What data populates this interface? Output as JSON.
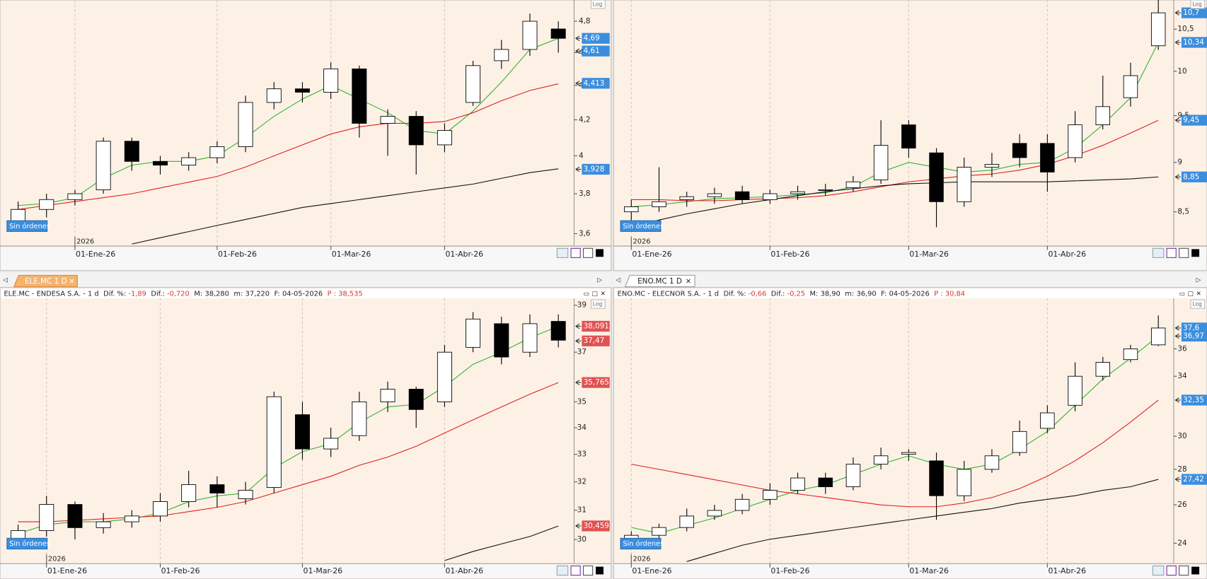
{
  "tabs": [
    "ELE.MC 1 D",
    "ENO.MC 1 D"
  ],
  "chart_data": [
    {
      "type": "candlestick",
      "log": true,
      "scale_button": "Log",
      "orders_label": "Sin órdenes",
      "year_label": "2026",
      "label_color": "#3b8ede",
      "up_color": "#ffffff",
      "down_color": "#000000",
      "ylim": [
        3.54,
        4.94
      ],
      "yticks": [
        {
          "value": 3.6,
          "label": "3,6"
        },
        {
          "value": 3.8,
          "label": "3,8"
        },
        4,
        {
          "value": 4.2,
          "label": "4,2"
        },
        {
          "value": 4.4,
          "label": "4,4"
        },
        {
          "value": 4.6,
          "label": "4,6"
        },
        {
          "value": 4.8,
          "label": "4,8"
        }
      ],
      "price_labels": [
        {
          "value": 4.69,
          "label": "4,69"
        },
        {
          "value": 4.61,
          "label": "4,61"
        },
        {
          "value": 4.413,
          "label": "4,413"
        },
        {
          "value": 3.928,
          "label": "3,928"
        }
      ],
      "categories": [
        null,
        null,
        "01-Ene-26",
        null,
        null,
        null,
        null,
        "01-Feb-26",
        null,
        null,
        null,
        "01-Mar-26",
        null,
        null,
        null,
        "01-Abr-26",
        null,
        null,
        null,
        null
      ],
      "ohlc": {
        "open": [
          3.65,
          3.72,
          3.77,
          3.82,
          4.08,
          3.97,
          3.95,
          3.99,
          4.05,
          4.3,
          4.38,
          4.36,
          4.5,
          4.18,
          4.22,
          4.06,
          4.3,
          4.55,
          4.62,
          4.75
        ],
        "high": [
          3.76,
          3.8,
          3.82,
          4.1,
          4.1,
          4.0,
          4.02,
          4.08,
          4.34,
          4.42,
          4.42,
          4.54,
          4.52,
          4.26,
          4.25,
          4.18,
          4.55,
          4.68,
          4.85,
          4.8
        ],
        "low": [
          3.62,
          3.68,
          3.74,
          3.8,
          3.92,
          3.9,
          3.92,
          3.96,
          4.02,
          4.26,
          4.3,
          4.32,
          4.1,
          4.0,
          3.9,
          4.02,
          4.28,
          4.5,
          4.58,
          4.6
        ],
        "close": [
          3.72,
          3.77,
          3.8,
          4.08,
          3.97,
          3.95,
          3.99,
          4.05,
          4.3,
          4.38,
          4.36,
          4.5,
          4.18,
          4.22,
          4.06,
          4.14,
          4.52,
          4.62,
          4.8,
          4.69
        ]
      },
      "lines": [
        {
          "color": "#2fb52f",
          "values": [
            3.74,
            3.75,
            3.78,
            3.88,
            3.95,
            3.97,
            3.97,
            4.0,
            4.1,
            4.22,
            4.32,
            4.4,
            4.32,
            4.24,
            4.14,
            4.12,
            4.25,
            4.42,
            4.62,
            4.69
          ]
        },
        {
          "color": "#e02020",
          "values": [
            3.72,
            3.74,
            3.76,
            3.78,
            3.8,
            3.83,
            3.86,
            3.89,
            3.94,
            4.0,
            4.06,
            4.12,
            4.16,
            4.18,
            4.18,
            4.19,
            4.24,
            4.31,
            4.37,
            4.41
          ]
        },
        {
          "color": "#111111",
          "values": [
            null,
            null,
            null,
            null,
            3.55,
            3.58,
            3.61,
            3.64,
            3.67,
            3.7,
            3.73,
            3.75,
            3.77,
            3.79,
            3.81,
            3.83,
            3.85,
            3.88,
            3.91,
            3.93
          ]
        }
      ]
    },
    {
      "type": "candlestick",
      "log": true,
      "scale_button": "Log",
      "orders_label": "Sin órdenes",
      "year_label": "2026",
      "label_color": "#3b8ede",
      "up_color": "#ffffff",
      "down_color": "#000000",
      "ylim": [
        8.17,
        10.86
      ],
      "yticks": [
        {
          "value": 8.5,
          "label": "8,5"
        },
        9,
        {
          "value": 9.5,
          "label": "9,5"
        },
        10,
        {
          "value": 10.5,
          "label": "10,5"
        }
      ],
      "price_labels": [
        {
          "value": 10.7,
          "label": "10,7"
        },
        {
          "value": 10.34,
          "label": "10,34"
        },
        {
          "value": 9.45,
          "label": "9,45"
        },
        {
          "value": 8.85,
          "label": "8,85"
        }
      ],
      "categories": [
        "01-Ene-26",
        null,
        null,
        null,
        null,
        "01-Feb-26",
        null,
        null,
        null,
        null,
        "01-Mar-26",
        null,
        null,
        null,
        null,
        "01-Abr-26",
        null,
        null,
        null,
        null
      ],
      "ohlc": {
        "open": [
          8.5,
          8.55,
          8.62,
          8.65,
          8.7,
          8.62,
          8.68,
          8.72,
          8.74,
          8.82,
          9.4,
          9.1,
          8.6,
          8.95,
          9.2,
          9.2,
          9.05,
          9.4,
          9.7,
          10.3
        ],
        "high": [
          8.62,
          8.95,
          8.7,
          8.74,
          8.76,
          8.72,
          8.76,
          8.78,
          8.86,
          9.45,
          9.45,
          9.15,
          9.05,
          9.1,
          9.3,
          9.3,
          9.55,
          9.95,
          10.1,
          10.86
        ],
        "low": [
          8.35,
          8.5,
          8.55,
          8.58,
          8.58,
          8.58,
          8.62,
          8.66,
          8.7,
          8.78,
          9.05,
          8.35,
          8.55,
          8.85,
          8.95,
          8.7,
          9.0,
          9.35,
          9.6,
          10.25
        ],
        "close": [
          8.55,
          8.6,
          8.65,
          8.68,
          8.62,
          8.68,
          8.7,
          8.72,
          8.8,
          9.18,
          9.15,
          8.6,
          8.95,
          8.98,
          9.05,
          8.9,
          9.4,
          9.6,
          9.95,
          10.7
        ]
      },
      "lines": [
        {
          "color": "#2fb52f",
          "values": [
            8.55,
            8.57,
            8.6,
            8.63,
            8.64,
            8.65,
            8.67,
            8.69,
            8.75,
            8.9,
            9.0,
            8.95,
            8.9,
            8.92,
            8.98,
            9.0,
            9.15,
            9.4,
            9.7,
            10.34
          ]
        },
        {
          "color": "#e02020",
          "values": [
            8.62,
            8.62,
            8.61,
            8.61,
            8.62,
            8.63,
            8.64,
            8.66,
            8.7,
            8.75,
            8.8,
            8.83,
            8.86,
            8.88,
            8.92,
            8.98,
            9.07,
            9.18,
            9.31,
            9.45
          ]
        },
        {
          "color": "#111111",
          "values": [
            8.35,
            8.42,
            8.48,
            8.53,
            8.58,
            8.62,
            8.66,
            8.7,
            8.73,
            8.76,
            8.78,
            8.79,
            8.8,
            8.8,
            8.8,
            8.8,
            8.81,
            8.82,
            8.83,
            8.85
          ]
        }
      ]
    },
    {
      "type": "candlestick",
      "log": true,
      "scale_button": "Log",
      "orders_label": "Sin órdenes",
      "year_label": "2026",
      "label_color": "#e05252",
      "up_color": "#ffffff",
      "down_color": "#000000",
      "header": {
        "symbol": "ELE.MC - ENDESA S.A. - 1 d",
        "fields": [
          {
            "label": "Dif. %:",
            "value": "-1,89",
            "color": "#d9342b"
          },
          {
            "label": "Dif.:",
            "value": "-0,720",
            "color": "#d9342b"
          },
          {
            "label": "M:",
            "value": "38,280"
          },
          {
            "label": "m:",
            "value": "37,220"
          },
          {
            "label": "F:",
            "value": "04-05-2026"
          },
          {
            "label": "P :",
            "value": "38,535",
            "color": "#d9342b",
            "label_color": "#d9342b"
          }
        ]
      },
      "ylim": [
        29.2,
        39.3
      ],
      "yticks": [
        30,
        31,
        32,
        33,
        34,
        35,
        37,
        39
      ],
      "price_labels": [
        {
          "value": 38.091,
          "label": "38,091"
        },
        {
          "value": 37.47,
          "label": "37,47"
        },
        {
          "value": 35.765,
          "label": "35,765"
        },
        {
          "value": 30.459,
          "label": "30,459"
        }
      ],
      "categories": [
        null,
        "01-Ene-26",
        null,
        null,
        null,
        "01-Feb-26",
        null,
        null,
        null,
        null,
        "01-Mar-26",
        null,
        null,
        null,
        null,
        "01-Abr-26",
        null,
        null,
        null,
        null
      ],
      "ohlc": {
        "open": [
          30.0,
          30.3,
          31.2,
          30.4,
          30.6,
          30.8,
          31.3,
          31.9,
          31.4,
          31.8,
          34.5,
          33.2,
          33.7,
          35.0,
          35.5,
          35.0,
          37.2,
          38.2,
          37.0,
          38.3
        ],
        "high": [
          30.5,
          31.5,
          31.3,
          30.9,
          31.0,
          31.6,
          32.4,
          32.2,
          32.0,
          35.4,
          35.0,
          34.0,
          35.4,
          35.8,
          35.6,
          37.3,
          38.7,
          38.5,
          38.6,
          38.6
        ],
        "low": [
          29.8,
          30.1,
          30.0,
          30.2,
          30.4,
          30.6,
          31.1,
          31.1,
          31.2,
          31.6,
          32.8,
          32.9,
          33.5,
          34.6,
          34.0,
          34.8,
          37.0,
          36.5,
          36.8,
          37.2
        ],
        "close": [
          30.3,
          31.2,
          30.4,
          30.6,
          30.8,
          31.3,
          31.9,
          31.6,
          31.7,
          35.2,
          33.2,
          33.6,
          35.0,
          35.5,
          34.7,
          37.0,
          38.4,
          36.8,
          38.2,
          37.5
        ]
      },
      "lines": [
        {
          "color": "#2fb52f",
          "values": [
            30.2,
            30.5,
            30.6,
            30.6,
            30.7,
            30.9,
            31.3,
            31.5,
            31.6,
            32.5,
            33.1,
            33.4,
            34.2,
            34.8,
            34.9,
            35.6,
            36.5,
            37.0,
            37.6,
            38.09
          ]
        },
        {
          "color": "#e02020",
          "values": [
            30.6,
            30.6,
            30.65,
            30.7,
            30.75,
            30.8,
            30.95,
            31.1,
            31.3,
            31.6,
            31.9,
            32.2,
            32.6,
            32.9,
            33.3,
            33.8,
            34.3,
            34.8,
            35.3,
            35.765
          ]
        },
        {
          "color": "#111111",
          "values": [
            null,
            null,
            null,
            null,
            null,
            null,
            null,
            null,
            null,
            null,
            null,
            null,
            null,
            null,
            null,
            29.3,
            29.6,
            29.85,
            30.1,
            30.459
          ]
        }
      ]
    },
    {
      "type": "candlestick",
      "log": true,
      "scale_button": "Log",
      "orders_label": "Sin órdenes",
      "year_label": "2026",
      "label_color": "#3b8ede",
      "up_color": "#ffffff",
      "down_color": "#000000",
      "header": {
        "symbol": "ENO.MC - ELECNOR S.A. - 1 d",
        "fields": [
          {
            "label": "Dif. %:",
            "value": "-0,66",
            "color": "#d9342b"
          },
          {
            "label": "Dif.:",
            "value": "-0,25",
            "color": "#d9342b"
          },
          {
            "label": "M:",
            "value": "38,90"
          },
          {
            "label": "m:",
            "value": "36,90"
          },
          {
            "label": "F:",
            "value": "04-05-2026"
          },
          {
            "label": "P :",
            "value": "30,84",
            "color": "#d9342b",
            "label_color": "#d9342b"
          }
        ]
      },
      "ylim": [
        23.0,
        40.0
      ],
      "yticks": [
        24,
        26,
        28,
        30,
        34,
        36
      ],
      "price_labels": [
        {
          "value": 37.6,
          "label": "37,6"
        },
        {
          "value": 36.97,
          "label": "36,97"
        },
        {
          "value": 32.35,
          "label": "32,35"
        },
        {
          "value": 27.42,
          "label": "27,42"
        }
      ],
      "categories": [
        "01-Ene-26",
        null,
        null,
        null,
        null,
        "01-Feb-26",
        null,
        null,
        null,
        null,
        "01-Mar-26",
        null,
        null,
        null,
        null,
        "01-Abr-26",
        null,
        null,
        null,
        null
      ],
      "ohlc": {
        "open": [
          24.2,
          24.4,
          24.8,
          25.4,
          25.7,
          26.3,
          26.8,
          27.5,
          27.0,
          28.3,
          28.9,
          28.5,
          26.5,
          28.0,
          29.0,
          30.5,
          32.0,
          34.0,
          35.2,
          36.3
        ],
        "high": [
          24.6,
          25.0,
          25.8,
          26.0,
          26.6,
          27.2,
          27.8,
          27.8,
          28.7,
          29.3,
          29.2,
          29.0,
          28.5,
          29.2,
          31.0,
          32.0,
          35.0,
          35.4,
          36.3,
          38.6
        ],
        "low": [
          23.9,
          24.2,
          24.6,
          25.2,
          25.5,
          26.0,
          26.6,
          26.6,
          26.8,
          28.0,
          28.5,
          25.2,
          26.2,
          27.8,
          28.8,
          30.2,
          31.6,
          33.7,
          35.0,
          36.2
        ],
        "close": [
          24.4,
          24.8,
          25.4,
          25.7,
          26.3,
          26.8,
          27.5,
          27.0,
          28.3,
          28.8,
          29.0,
          26.5,
          28.0,
          28.8,
          30.3,
          31.5,
          34.0,
          35.0,
          36.0,
          37.6
        ]
      },
      "lines": [
        {
          "color": "#2fb52f",
          "values": [
            24.8,
            24.5,
            24.9,
            25.3,
            25.8,
            26.3,
            26.8,
            27.1,
            27.7,
            28.3,
            28.8,
            28.3,
            28.0,
            28.3,
            29.2,
            30.3,
            32.0,
            33.8,
            35.3,
            36.97
          ]
        },
        {
          "color": "#e02020",
          "values": [
            28.3,
            28.0,
            27.7,
            27.4,
            27.1,
            26.8,
            26.6,
            26.4,
            26.2,
            26.0,
            25.9,
            25.9,
            26.1,
            26.4,
            26.9,
            27.6,
            28.5,
            29.6,
            30.9,
            32.35
          ]
        },
        {
          "color": "#111111",
          "values": [
            null,
            null,
            23.1,
            23.5,
            23.9,
            24.2,
            24.4,
            24.6,
            24.8,
            25.0,
            25.2,
            25.4,
            25.6,
            25.8,
            26.1,
            26.3,
            26.5,
            26.8,
            27.0,
            27.42
          ]
        }
      ]
    }
  ]
}
